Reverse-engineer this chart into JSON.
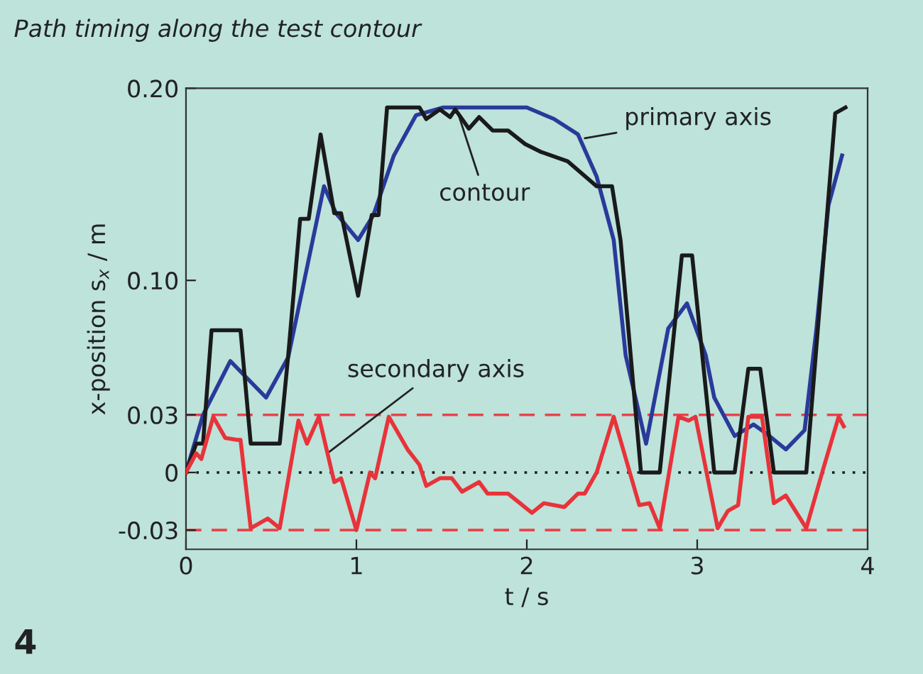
{
  "chart_data": {
    "type": "line",
    "title": "Path timing along the test contour",
    "xlabel": "t / s",
    "ylabel": "x-position s$_{x}$ / m",
    "xlim": [
      0,
      4
    ],
    "ylim": [
      -0.04,
      0.2
    ],
    "xticks": [
      0,
      1,
      2,
      3,
      4
    ],
    "yticks": [
      {
        "value": -0.03,
        "label": "-0.03"
      },
      0,
      0.03,
      {
        "value": 0.1,
        "label": "0.10"
      },
      {
        "value": 0.2,
        "label": "0.20"
      }
    ],
    "grid": false,
    "legend": false,
    "line_style": "solid",
    "marker": "none",
    "series": [
      {
        "color": "#2a3a9a",
        "x": [
          0,
          0.1,
          0.26,
          0.47,
          0.6,
          0.81,
          0.88,
          1.01,
          1.1,
          1.22,
          1.35,
          1.51,
          2.0,
          2.16,
          2.3,
          2.41,
          2.51,
          2.58,
          2.7,
          2.83,
          2.94,
          3.05,
          3.1,
          3.22,
          3.33,
          3.41,
          3.52,
          3.63,
          3.7,
          3.77,
          3.85
        ],
        "values": [
          0,
          0.03,
          0.058,
          0.039,
          0.06,
          0.149,
          0.135,
          0.121,
          0.134,
          0.165,
          0.186,
          0.19,
          0.19,
          0.184,
          0.176,
          0.154,
          0.121,
          0.061,
          0.015,
          0.075,
          0.088,
          0.061,
          0.039,
          0.019,
          0.025,
          0.02,
          0.012,
          0.022,
          0.075,
          0.139,
          0.165
        ]
      },
      {
        "color": "#1a1a1a",
        "x": [
          0,
          0.06,
          0.1,
          0.15,
          0.32,
          0.38,
          0.55,
          0.6,
          0.67,
          0.72,
          0.79,
          0.87,
          0.91,
          1.01,
          1.09,
          1.13,
          1.18,
          1.37,
          1.41,
          1.49,
          1.55,
          1.58,
          1.66,
          1.72,
          1.8,
          1.89,
          1.99,
          2.08,
          2.24,
          2.41,
          2.5,
          2.55,
          2.67,
          2.78,
          2.91,
          2.97,
          3.1,
          3.22,
          3.3,
          3.37,
          3.45,
          3.64,
          3.81,
          3.87
        ],
        "values": [
          0,
          0.015,
          0.015,
          0.074,
          0.074,
          0.015,
          0.015,
          0.061,
          0.132,
          0.132,
          0.176,
          0.135,
          0.135,
          0.092,
          0.134,
          0.134,
          0.19,
          0.19,
          0.184,
          0.189,
          0.185,
          0.189,
          0.179,
          0.185,
          0.178,
          0.178,
          0.171,
          0.167,
          0.162,
          0.149,
          0.149,
          0.121,
          0,
          0,
          0.113,
          0.113,
          0,
          0,
          0.054,
          0.054,
          0,
          0,
          0.187,
          0.19
        ]
      },
      {
        "color": "#e8333a",
        "x": [
          0,
          0.06,
          0.09,
          0.16,
          0.23,
          0.3,
          0.32,
          0.38,
          0.48,
          0.55,
          0.66,
          0.71,
          0.78,
          0.87,
          0.91,
          1.0,
          1.08,
          1.11,
          1.19,
          1.3,
          1.37,
          1.41,
          1.49,
          1.56,
          1.62,
          1.72,
          1.77,
          1.89,
          1.96,
          2.03,
          2.1,
          2.22,
          2.3,
          2.34,
          2.41,
          2.51,
          2.66,
          2.72,
          2.78,
          2.89,
          2.95,
          2.99,
          3.12,
          3.18,
          3.24,
          3.3,
          3.38,
          3.45,
          3.52,
          3.64,
          3.74,
          3.83,
          3.86
        ],
        "values": [
          0,
          0.01,
          0.007,
          0.029,
          0.018,
          0.017,
          0.017,
          -0.029,
          -0.024,
          -0.029,
          0.027,
          0.015,
          0.029,
          -0.005,
          -0.003,
          -0.03,
          0,
          -0.003,
          0.029,
          0.012,
          0.004,
          -0.007,
          -0.003,
          -0.003,
          -0.01,
          -0.005,
          -0.011,
          -0.011,
          -0.016,
          -0.021,
          -0.016,
          -0.018,
          -0.011,
          -0.011,
          0,
          0.029,
          -0.017,
          -0.016,
          -0.029,
          0.029,
          0.027,
          0.029,
          -0.029,
          -0.02,
          -0.017,
          0.029,
          0.029,
          -0.016,
          -0.012,
          -0.029,
          0.002,
          0.029,
          0.024
        ]
      }
    ],
    "ref_lines": [
      {
        "axis": "y",
        "value": 0.03,
        "color": "#e8434a",
        "line_style": "dashed"
      },
      {
        "axis": "y",
        "value": -0.03,
        "color": "#e8434a",
        "line_style": "dashed"
      },
      {
        "axis": "y",
        "value": 0,
        "color": "#1a1a1a",
        "line_style": "dotted"
      }
    ],
    "annotations": [
      {
        "text": "contour",
        "x": 1.6,
        "y": 0.186
      },
      {
        "text": "primary axis",
        "x": 2.34,
        "y": 0.174
      },
      {
        "text": "secondary axis",
        "x": 0.83,
        "y": 0.01
      },
      "4"
    ]
  }
}
